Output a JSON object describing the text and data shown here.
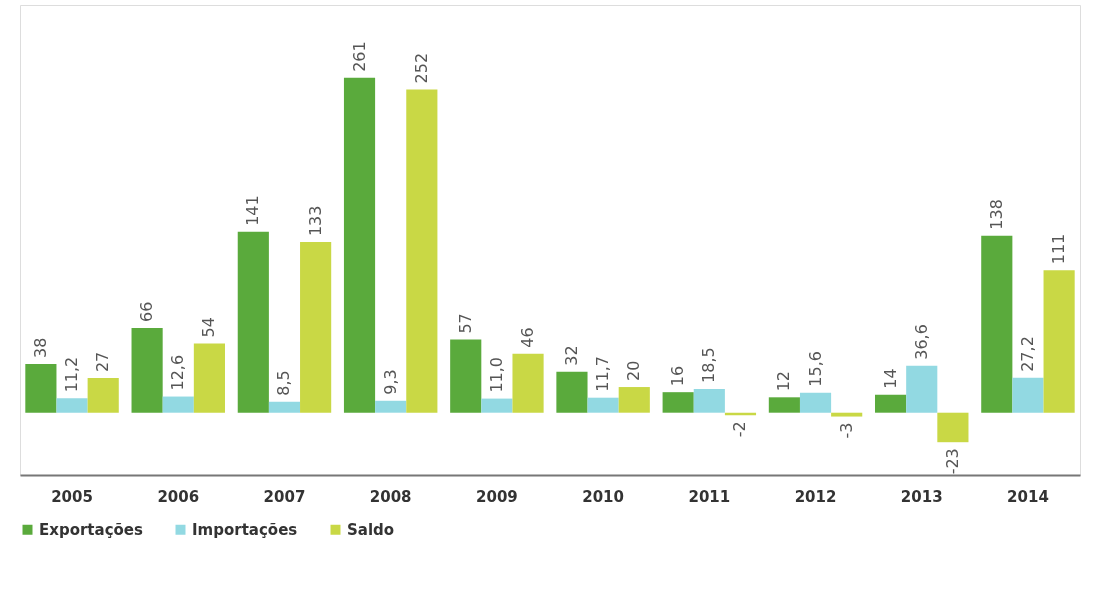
{
  "chart_data": {
    "type": "bar",
    "categories": [
      "2005",
      "2006",
      "2007",
      "2008",
      "2009",
      "2010",
      "2011",
      "2012",
      "2013",
      "2014"
    ],
    "series": [
      {
        "name": "Exportações",
        "color": "#5aaa3c",
        "values": [
          38,
          66,
          141,
          261,
          57,
          32,
          16,
          12,
          14,
          138
        ],
        "value_labels": [
          "38",
          "66",
          "141",
          "261",
          "57",
          "32",
          "16",
          "12",
          "14",
          "138"
        ]
      },
      {
        "name": "Importações",
        "color": "#92d9e2",
        "values": [
          11.2,
          12.6,
          8.5,
          9.3,
          11.0,
          11.7,
          18.5,
          15.6,
          36.6,
          27.2
        ],
        "value_labels": [
          "11,2",
          "12,6",
          "8,5",
          "9,3",
          "11,0",
          "11,7",
          "18,5",
          "15,6",
          "36,6",
          "27,2"
        ]
      },
      {
        "name": "Saldo",
        "color": "#c9d845",
        "values": [
          27,
          54,
          133,
          252,
          46,
          20,
          -2,
          -3,
          -23,
          111
        ],
        "value_labels": [
          "27",
          "54",
          "133",
          "252",
          "46",
          "20",
          "-2",
          "-3",
          "-23",
          "111"
        ]
      }
    ],
    "legend": "bottom",
    "tick_labels": "x",
    "grid": false
  }
}
